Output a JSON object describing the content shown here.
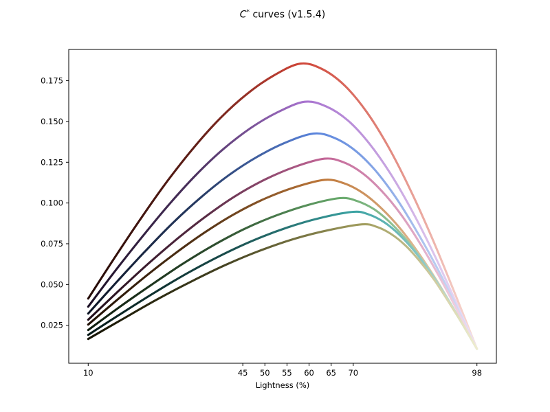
{
  "title": {
    "math_symbol": "C",
    "superscript": "*",
    "rest": " curves (v1.5.4)",
    "full": "C* curves (v1.5.4)"
  },
  "chart_data": {
    "type": "line",
    "title": "C* curves (v1.5.4)",
    "xlabel": "Lightness (%)",
    "ylabel": "",
    "xlim": [
      5.6,
      102.4
    ],
    "ylim": [
      0.0017,
      0.1942
    ],
    "grid": false,
    "legend": false,
    "xticks": [
      10,
      45,
      50,
      55,
      60,
      65,
      70,
      98
    ],
    "xtick_labels": [
      "10",
      "45",
      "50",
      "55",
      "60",
      "65",
      "70",
      "98"
    ],
    "yticks": [
      0.025,
      0.05,
      0.075,
      0.1,
      0.125,
      0.15,
      0.175
    ],
    "ytick_labels": [
      "0.025",
      "0.050",
      "0.075",
      "0.100",
      "0.125",
      "0.150",
      "0.175"
    ],
    "series_note": "Each curve is chroma (C*) vs lightness; line color fades dark at L=10, pure hue at peak, near-white at L=98",
    "series": [
      {
        "name": "curve-red",
        "hue": "red",
        "start": [
          10,
          0.0414
        ],
        "peak": [
          58,
          0.1855
        ],
        "end": [
          98,
          0.0105
        ],
        "peak_offset": 0.545,
        "colors": {
          "dark": "#230a06",
          "peak": "#cf4437",
          "light": "#f9ded7"
        },
        "points": [
          [
            10,
            0.0414
          ],
          [
            16,
            0.0665
          ],
          [
            22,
            0.0908
          ],
          [
            28,
            0.1137
          ],
          [
            34,
            0.1343
          ],
          [
            40,
            0.1523
          ],
          [
            46,
            0.167
          ],
          [
            52,
            0.1782
          ],
          [
            58,
            0.1855
          ],
          [
            63,
            0.1821
          ],
          [
            68,
            0.1722
          ],
          [
            73,
            0.156
          ],
          [
            78,
            0.1342
          ],
          [
            83,
            0.1077
          ],
          [
            88,
            0.0775
          ],
          [
            93,
            0.0446
          ],
          [
            98,
            0.0105
          ]
        ]
      },
      {
        "name": "curve-purple",
        "hue": "purple",
        "start": [
          10,
          0.0364
        ],
        "peak": [
          59,
          0.1621
        ],
        "end": [
          98,
          0.0105
        ],
        "peak_offset": 0.557,
        "colors": {
          "dark": "#1b0f24",
          "peak": "#a873cf",
          "light": "#f0e2f7"
        },
        "points": [
          [
            10,
            0.0364
          ],
          [
            16.1,
            0.0583
          ],
          [
            22.3,
            0.0795
          ],
          [
            28.4,
            0.0994
          ],
          [
            34.5,
            0.1175
          ],
          [
            40.6,
            0.1331
          ],
          [
            46.8,
            0.146
          ],
          [
            52.9,
            0.1557
          ],
          [
            59,
            0.1621
          ],
          [
            63.9,
            0.1592
          ],
          [
            68.8,
            0.1506
          ],
          [
            73.6,
            0.1366
          ],
          [
            78.5,
            0.1177
          ],
          [
            83.4,
            0.0947
          ],
          [
            88.3,
            0.0685
          ],
          [
            93.1,
            0.0401
          ],
          [
            98,
            0.0105
          ]
        ]
      },
      {
        "name": "curve-blue",
        "hue": "blue",
        "start": [
          10,
          0.0322
        ],
        "peak": [
          61,
          0.1426
        ],
        "end": [
          98,
          0.0105
        ],
        "peak_offset": 0.58,
        "colors": {
          "dark": "#0c1424",
          "peak": "#5a84dc",
          "light": "#dde7f8"
        },
        "points": [
          [
            10,
            0.0322
          ],
          [
            16.4,
            0.0514
          ],
          [
            22.8,
            0.0701
          ],
          [
            29.1,
            0.0876
          ],
          [
            35.5,
            0.1034
          ],
          [
            41.9,
            0.1172
          ],
          [
            48.3,
            0.1284
          ],
          [
            54.6,
            0.137
          ],
          [
            61,
            0.1426
          ],
          [
            65.6,
            0.1401
          ],
          [
            70.3,
            0.1325
          ],
          [
            74.9,
            0.1203
          ],
          [
            79.5,
            0.1039
          ],
          [
            84.1,
            0.0839
          ],
          [
            88.8,
            0.0611
          ],
          [
            93.4,
            0.0363
          ],
          [
            98,
            0.0105
          ]
        ]
      },
      {
        "name": "curve-pink",
        "hue": "pink",
        "start": [
          10,
          0.0284
        ],
        "peak": [
          63.5,
          0.1272
        ],
        "end": [
          98,
          0.0105
        ],
        "peak_offset": 0.608,
        "colors": {
          "dark": "#200d19",
          "peak": "#c36697",
          "light": "#f7e0ec"
        },
        "points": [
          [
            10,
            0.0284
          ],
          [
            16.7,
            0.0456
          ],
          [
            23.4,
            0.0623
          ],
          [
            30.1,
            0.0779
          ],
          [
            36.8,
            0.0921
          ],
          [
            43.4,
            0.1044
          ],
          [
            50.1,
            0.1145
          ],
          [
            56.8,
            0.1222
          ],
          [
            63.5,
            0.1272
          ],
          [
            67.8,
            0.125
          ],
          [
            72.1,
            0.1183
          ],
          [
            76.4,
            0.1075
          ],
          [
            80.8,
            0.093
          ],
          [
            85.1,
            0.0753
          ],
          [
            89.4,
            0.0552
          ],
          [
            93.7,
            0.0333
          ],
          [
            98,
            0.0105
          ]
        ]
      },
      {
        "name": "curve-orange",
        "hue": "orange",
        "start": [
          10,
          0.0254
        ],
        "peak": [
          63.5,
          0.1142
        ],
        "end": [
          98,
          0.0105
        ],
        "peak_offset": 0.608,
        "colors": {
          "dark": "#1f1004",
          "peak": "#c0793b",
          "light": "#f5e5d3"
        },
        "points": [
          [
            10,
            0.0254
          ],
          [
            16.7,
            0.0409
          ],
          [
            23.4,
            0.0559
          ],
          [
            30.1,
            0.0699
          ],
          [
            36.8,
            0.0827
          ],
          [
            43.4,
            0.0937
          ],
          [
            50.1,
            0.1028
          ],
          [
            56.8,
            0.1097
          ],
          [
            63.5,
            0.1142
          ],
          [
            67.8,
            0.1122
          ],
          [
            72.1,
            0.1063
          ],
          [
            76.4,
            0.0967
          ],
          [
            80.8,
            0.0838
          ],
          [
            85.1,
            0.0681
          ],
          [
            89.4,
            0.0502
          ],
          [
            93.7,
            0.0307
          ],
          [
            98,
            0.0105
          ]
        ]
      },
      {
        "name": "curve-green",
        "hue": "green",
        "start": [
          10,
          0.0221
        ],
        "peak": [
          67,
          0.103
        ],
        "end": [
          98,
          0.0105
        ],
        "peak_offset": 0.648,
        "colors": {
          "dark": "#0d1b0d",
          "peak": "#67a96b",
          "light": "#dfeede"
        },
        "points": [
          [
            10,
            0.0221
          ],
          [
            17.1,
            0.0362
          ],
          [
            24.3,
            0.0498
          ],
          [
            31.4,
            0.0627
          ],
          [
            38.5,
            0.0743
          ],
          [
            45.6,
            0.0844
          ],
          [
            52.8,
            0.0926
          ],
          [
            59.9,
            0.0989
          ],
          [
            67,
            0.103
          ],
          [
            70.9,
            0.1012
          ],
          [
            74.8,
            0.096
          ],
          [
            78.6,
            0.0874
          ],
          [
            82.5,
            0.0759
          ],
          [
            86.4,
            0.0619
          ],
          [
            90.3,
            0.0459
          ],
          [
            94.1,
            0.0285
          ],
          [
            98,
            0.0105
          ]
        ]
      },
      {
        "name": "curve-teal",
        "hue": "teal",
        "start": [
          10,
          0.0191
        ],
        "peak": [
          70,
          0.0946
        ],
        "end": [
          98,
          0.0105
        ],
        "peak_offset": 0.682,
        "colors": {
          "dark": "#061918",
          "peak": "#3aa2a2",
          "light": "#d7eeec"
        },
        "points": [
          [
            10,
            0.0191
          ],
          [
            17.5,
            0.0322
          ],
          [
            25,
            0.045
          ],
          [
            32.5,
            0.057
          ],
          [
            40,
            0.0678
          ],
          [
            47.5,
            0.0772
          ],
          [
            55,
            0.0849
          ],
          [
            62.5,
            0.0908
          ],
          [
            70,
            0.0946
          ],
          [
            73.5,
            0.093
          ],
          [
            77,
            0.0882
          ],
          [
            80.5,
            0.0804
          ],
          [
            84,
            0.07
          ],
          [
            87.5,
            0.0572
          ],
          [
            91,
            0.0427
          ],
          [
            94.5,
            0.0269
          ],
          [
            98,
            0.0105
          ]
        ]
      },
      {
        "name": "curve-olive",
        "hue": "olive",
        "start": [
          10,
          0.0166
        ],
        "peak": [
          72,
          0.0869
        ],
        "end": [
          98,
          0.0105
        ],
        "peak_offset": 0.705,
        "colors": {
          "dark": "#141202",
          "peak": "#a19d5e",
          "light": "#efedd0"
        },
        "points": [
          [
            10,
            0.0166
          ],
          [
            17.8,
            0.0288
          ],
          [
            25.5,
            0.0407
          ],
          [
            33.3,
            0.0518
          ],
          [
            41,
            0.0619
          ],
          [
            48.8,
            0.0707
          ],
          [
            56.5,
            0.0779
          ],
          [
            64.3,
            0.0833
          ],
          [
            72,
            0.0869
          ],
          [
            75.3,
            0.0854
          ],
          [
            78.5,
            0.0811
          ],
          [
            81.8,
            0.074
          ],
          [
            85,
            0.0645
          ],
          [
            88.3,
            0.053
          ],
          [
            91.5,
            0.0397
          ],
          [
            94.8,
            0.0254
          ],
          [
            98,
            0.0105
          ]
        ]
      }
    ]
  }
}
